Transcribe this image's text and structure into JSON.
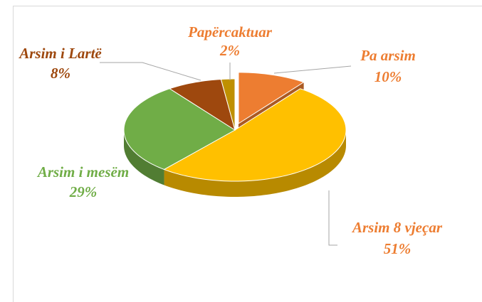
{
  "chart_data": {
    "type": "pie",
    "categories": [
      "Pa arsim",
      "Arsim 8 vjeçar",
      "Arsim i mesëm",
      "Arsim i Lartë",
      "Papërcaktuar"
    ],
    "values": [
      10,
      51,
      29,
      8,
      2
    ],
    "value_labels": [
      "10%",
      "51%",
      "29%",
      "8%",
      "2%"
    ],
    "colors": [
      "#ED7D31",
      "#FFC000",
      "#70AD47",
      "#9E480E",
      "#BF9000"
    ],
    "label_colors": [
      "#ED7D31",
      "#ED7D31",
      "#70AD47",
      "#9E480E",
      "#ED7D31"
    ]
  }
}
